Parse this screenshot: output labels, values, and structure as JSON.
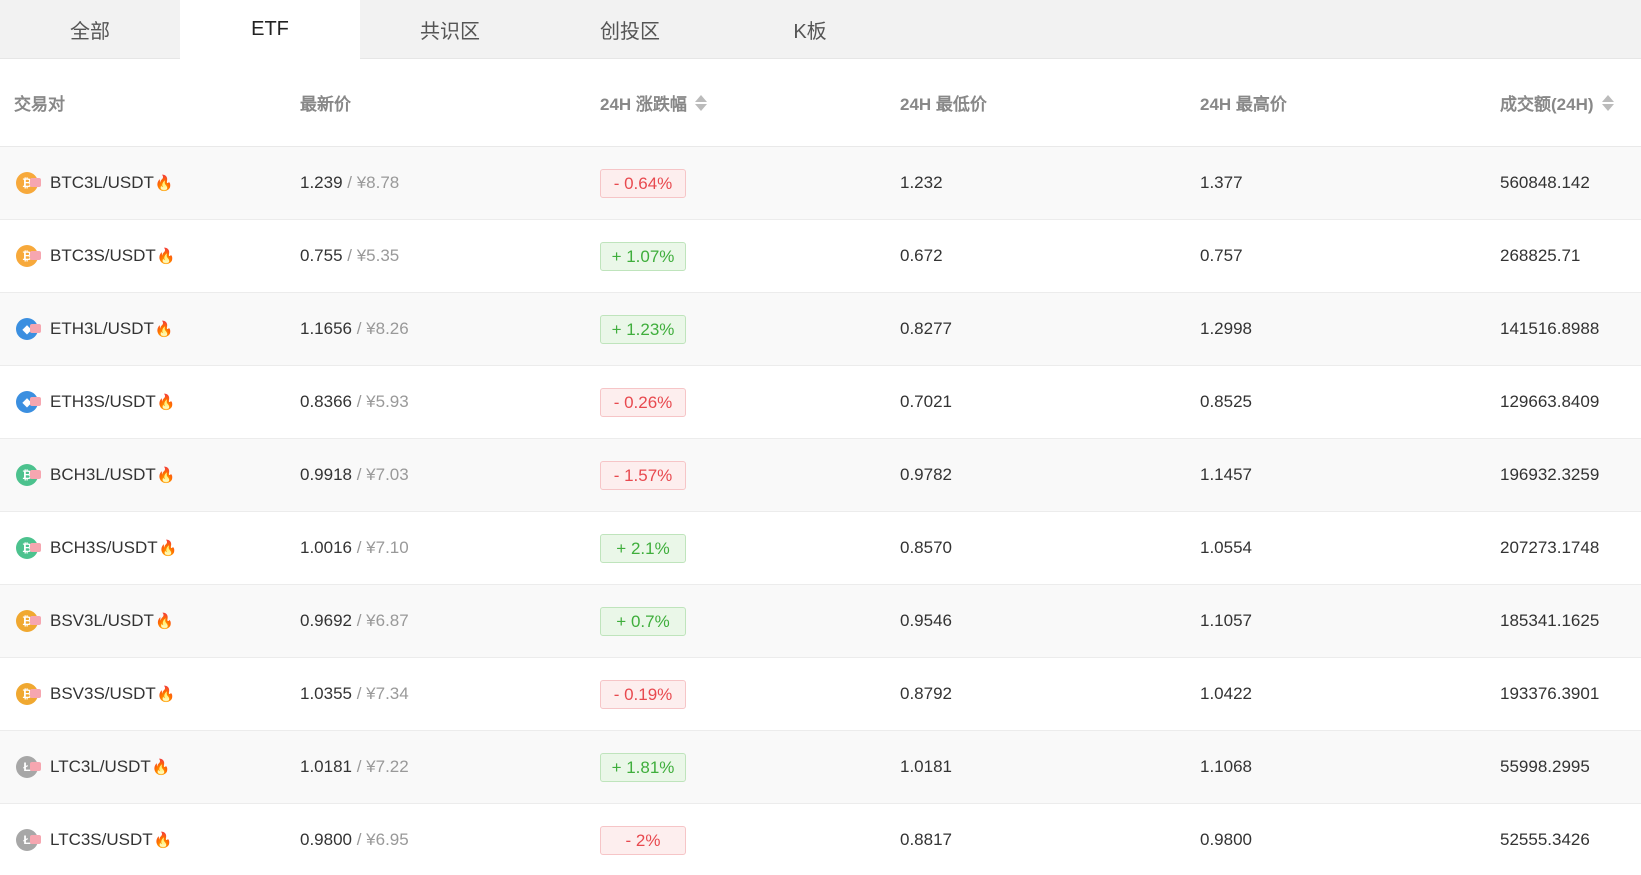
{
  "tabs": [
    {
      "label": "全部",
      "active": false
    },
    {
      "label": "ETF",
      "active": true
    },
    {
      "label": "共识区",
      "active": false
    },
    {
      "label": "创投区",
      "active": false
    },
    {
      "label": "K板",
      "active": false
    }
  ],
  "columns": {
    "pair": "交易对",
    "price": "最新价",
    "change": "24H 涨跌幅",
    "low": "24H 最低价",
    "high": "24H 最高价",
    "volume": "成交额(24H)"
  },
  "rows": [
    {
      "coin": "btc",
      "pair": "BTC3L/USDT",
      "price": "1.239",
      "cny": " / ¥8.78",
      "change": "- 0.64%",
      "dir": "down",
      "low": "1.232",
      "high": "1.377",
      "volume": "560848.142"
    },
    {
      "coin": "btc",
      "pair": "BTC3S/USDT",
      "price": "0.755",
      "cny": " / ¥5.35",
      "change": "+ 1.07%",
      "dir": "up",
      "low": "0.672",
      "high": "0.757",
      "volume": "268825.71"
    },
    {
      "coin": "eth",
      "pair": "ETH3L/USDT",
      "price": "1.1656",
      "cny": " / ¥8.26",
      "change": "+ 1.23%",
      "dir": "up",
      "low": "0.8277",
      "high": "1.2998",
      "volume": "141516.8988"
    },
    {
      "coin": "eth",
      "pair": "ETH3S/USDT",
      "price": "0.8366",
      "cny": " / ¥5.93",
      "change": "- 0.26%",
      "dir": "down",
      "low": "0.7021",
      "high": "0.8525",
      "volume": "129663.8409"
    },
    {
      "coin": "bch",
      "pair": "BCH3L/USDT",
      "price": "0.9918",
      "cny": " / ¥7.03",
      "change": "- 1.57%",
      "dir": "down",
      "low": "0.9782",
      "high": "1.1457",
      "volume": "196932.3259"
    },
    {
      "coin": "bch",
      "pair": "BCH3S/USDT",
      "price": "1.0016",
      "cny": " / ¥7.10",
      "change": "+ 2.1%",
      "dir": "up",
      "low": "0.8570",
      "high": "1.0554",
      "volume": "207273.1748"
    },
    {
      "coin": "bsv",
      "pair": "BSV3L/USDT",
      "price": "0.9692",
      "cny": " / ¥6.87",
      "change": "+ 0.7%",
      "dir": "up",
      "low": "0.9546",
      "high": "1.1057",
      "volume": "185341.1625"
    },
    {
      "coin": "bsv",
      "pair": "BSV3S/USDT",
      "price": "1.0355",
      "cny": " / ¥7.34",
      "change": "- 0.19%",
      "dir": "down",
      "low": "0.8792",
      "high": "1.0422",
      "volume": "193376.3901"
    },
    {
      "coin": "ltc",
      "pair": "LTC3L/USDT",
      "price": "1.0181",
      "cny": " / ¥7.22",
      "change": "+ 1.81%",
      "dir": "up",
      "low": "1.0181",
      "high": "1.1068",
      "volume": "55998.2995"
    },
    {
      "coin": "ltc",
      "pair": "LTC3S/USDT",
      "price": "0.9800",
      "cny": " / ¥6.95",
      "change": "- 2%",
      "dir": "down",
      "low": "0.8817",
      "high": "0.9800",
      "volume": "52555.3426"
    }
  ],
  "coin_colors": {
    "btc": "#f7a93b",
    "eth": "#3b8fe0",
    "bch": "#4cc28e",
    "bsv": "#f0a830",
    "ltc": "#a7a7a7"
  },
  "coin_glyphs": {
    "btc": "₿",
    "eth": "◆",
    "bch": "₿",
    "bsv": "₿",
    "ltc": "Ł"
  },
  "icons": {
    "fire": "fire-icon",
    "sort": "sort-icon"
  },
  "status_colors": {
    "up": "#3fae3c",
    "down": "#e8494f"
  }
}
